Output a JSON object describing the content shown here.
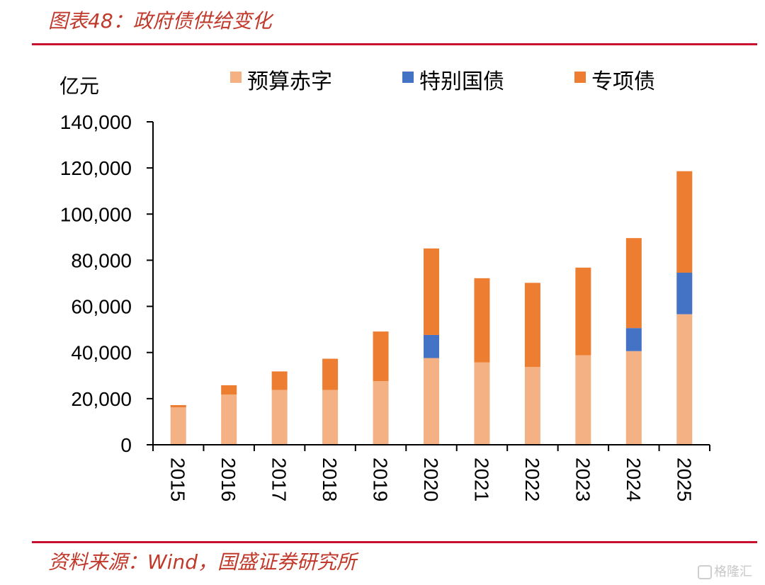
{
  "header": {
    "figure_title": "图表48：政府债供给变化"
  },
  "footer": {
    "source": "资料来源：Wind，国盛证券研究所"
  },
  "watermark": {
    "text": "格隆汇"
  },
  "chart_data": {
    "type": "bar",
    "stacked": true,
    "title": "",
    "xlabel": "",
    "ylabel": "亿元",
    "ylim": [
      0,
      140000
    ],
    "yticks": [
      0,
      20000,
      40000,
      60000,
      80000,
      100000,
      120000,
      140000
    ],
    "ytick_labels": [
      "0",
      "20,000",
      "40,000",
      "60,000",
      "80,000",
      "100,000",
      "120,000",
      "140,000"
    ],
    "grid": false,
    "legend_position": "top",
    "x_label_rotation": "vertical",
    "categories": [
      "2015",
      "2016",
      "2017",
      "2018",
      "2019",
      "2020",
      "2021",
      "2022",
      "2023",
      "2024",
      "2025"
    ],
    "series": [
      {
        "name": "预算赤字",
        "color": "#f4b183",
        "values": [
          16200,
          21800,
          23800,
          23800,
          27600,
          37600,
          35700,
          33700,
          38800,
          40600,
          56600
        ]
      },
      {
        "name": "特别国债",
        "color": "#4472c4",
        "values": [
          0,
          0,
          0,
          0,
          0,
          10000,
          0,
          0,
          0,
          10000,
          18000
        ]
      },
      {
        "name": "专项债",
        "color": "#ed7d31",
        "values": [
          1000,
          4000,
          8000,
          13500,
          21500,
          37500,
          36500,
          36500,
          38000,
          39000,
          44000
        ]
      }
    ]
  }
}
